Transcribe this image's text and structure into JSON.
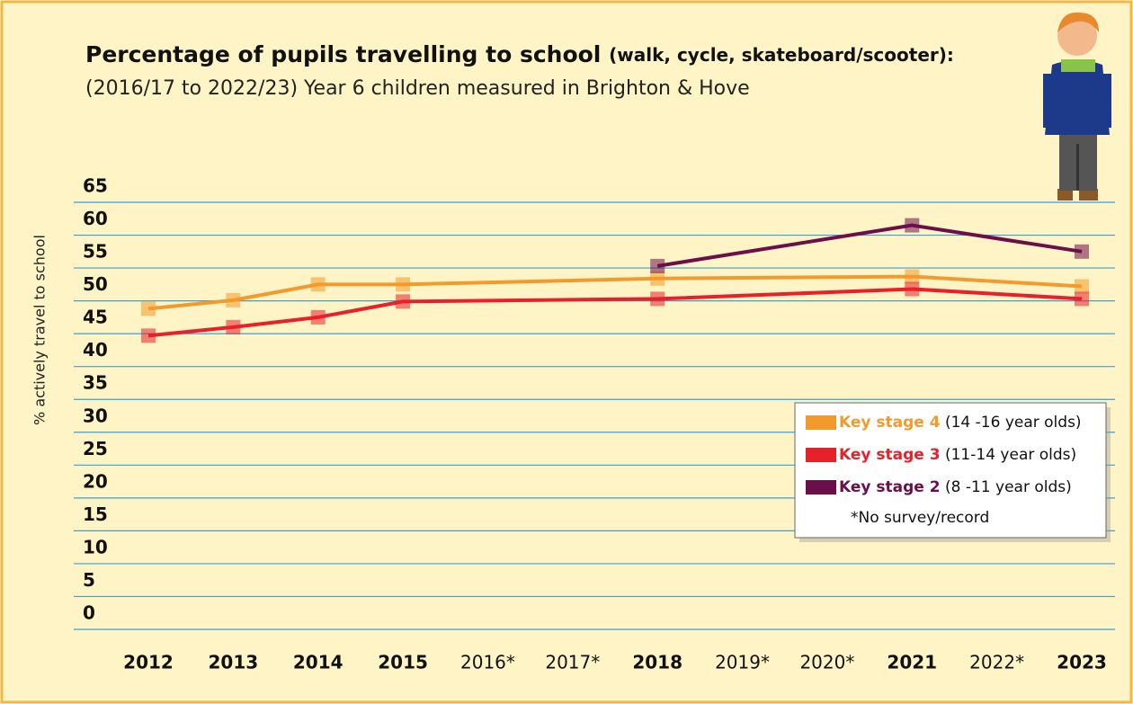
{
  "chart_data": {
    "type": "line",
    "title": "Percentage of pupils travelling to school",
    "title_detail": "(walk, cycle, skateboard/scooter):",
    "subtitle": "(2016/17 to 2022/23) Year 6 children measured in Brighton & Hove",
    "y_label": "% actively travel to school",
    "x": [
      2012,
      2013,
      2014,
      2015,
      2018,
      2021,
      2023
    ],
    "xlim": [
      2012,
      2023
    ],
    "xticks": [
      2012,
      2013,
      2014,
      2015,
      {
        "value": 2016,
        "label": "2016*"
      },
      {
        "value": 2017,
        "label": "2017*"
      },
      2018,
      {
        "value": 2019,
        "label": "2019*"
      },
      {
        "value": 2020,
        "label": "2020*"
      },
      2021,
      {
        "value": 2022,
        "label": "2022*"
      },
      2023
    ],
    "ylim": [
      0,
      65
    ],
    "yticks": [
      0,
      5,
      10,
      15,
      20,
      25,
      30,
      35,
      40,
      45,
      50,
      55,
      60,
      65
    ],
    "grid": true,
    "legend": "lower right",
    "series": [
      {
        "name": "Key stage 4",
        "detail": "(14 -16 year olds)",
        "color": "#f39a2c",
        "values": [
          48.8,
          50.1,
          52.5,
          52.5,
          53.4,
          53.7,
          52.2
        ]
      },
      {
        "name": "Key stage 3",
        "detail": "(11-14 year olds)",
        "color": "#e8202a",
        "values": [
          44.7,
          46.0,
          47.5,
          49.9,
          50.3,
          51.8,
          50.3
        ]
      },
      {
        "name": "Key stage 2",
        "detail": "(8 -11 year olds)",
        "color": "#6b0f4a",
        "values": [
          null,
          null,
          null,
          null,
          55.3,
          61.5,
          57.5
        ]
      }
    ],
    "footnote": "*No survey/record"
  }
}
